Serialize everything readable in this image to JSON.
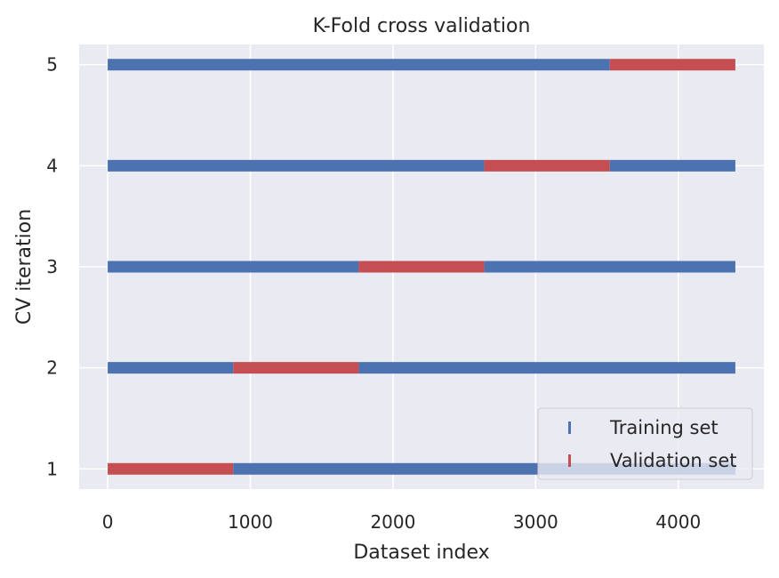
{
  "chart_data": {
    "type": "bar",
    "orientation": "horizontal-segments",
    "title": "K-Fold cross validation",
    "xlabel": "Dataset index",
    "ylabel": "CV iteration",
    "xlim": [
      -200,
      4600
    ],
    "ylim": [
      0.8,
      5.2
    ],
    "xticks": [
      0,
      1000,
      2000,
      3000,
      4000
    ],
    "yticks": [
      1,
      2,
      3,
      4,
      5
    ],
    "grid": true,
    "legend_position": "lower-right",
    "dataset_size": 4400,
    "series": [
      {
        "name": "Training set",
        "color": "#4c72b0"
      },
      {
        "name": "Validation set",
        "color": "#c44e52"
      }
    ],
    "folds": [
      {
        "iteration": 1,
        "validation": [
          0,
          880
        ]
      },
      {
        "iteration": 2,
        "validation": [
          880,
          1760
        ]
      },
      {
        "iteration": 3,
        "validation": [
          1760,
          2640
        ]
      },
      {
        "iteration": 4,
        "validation": [
          2640,
          3520
        ]
      },
      {
        "iteration": 5,
        "validation": [
          3520,
          4400
        ]
      }
    ]
  }
}
